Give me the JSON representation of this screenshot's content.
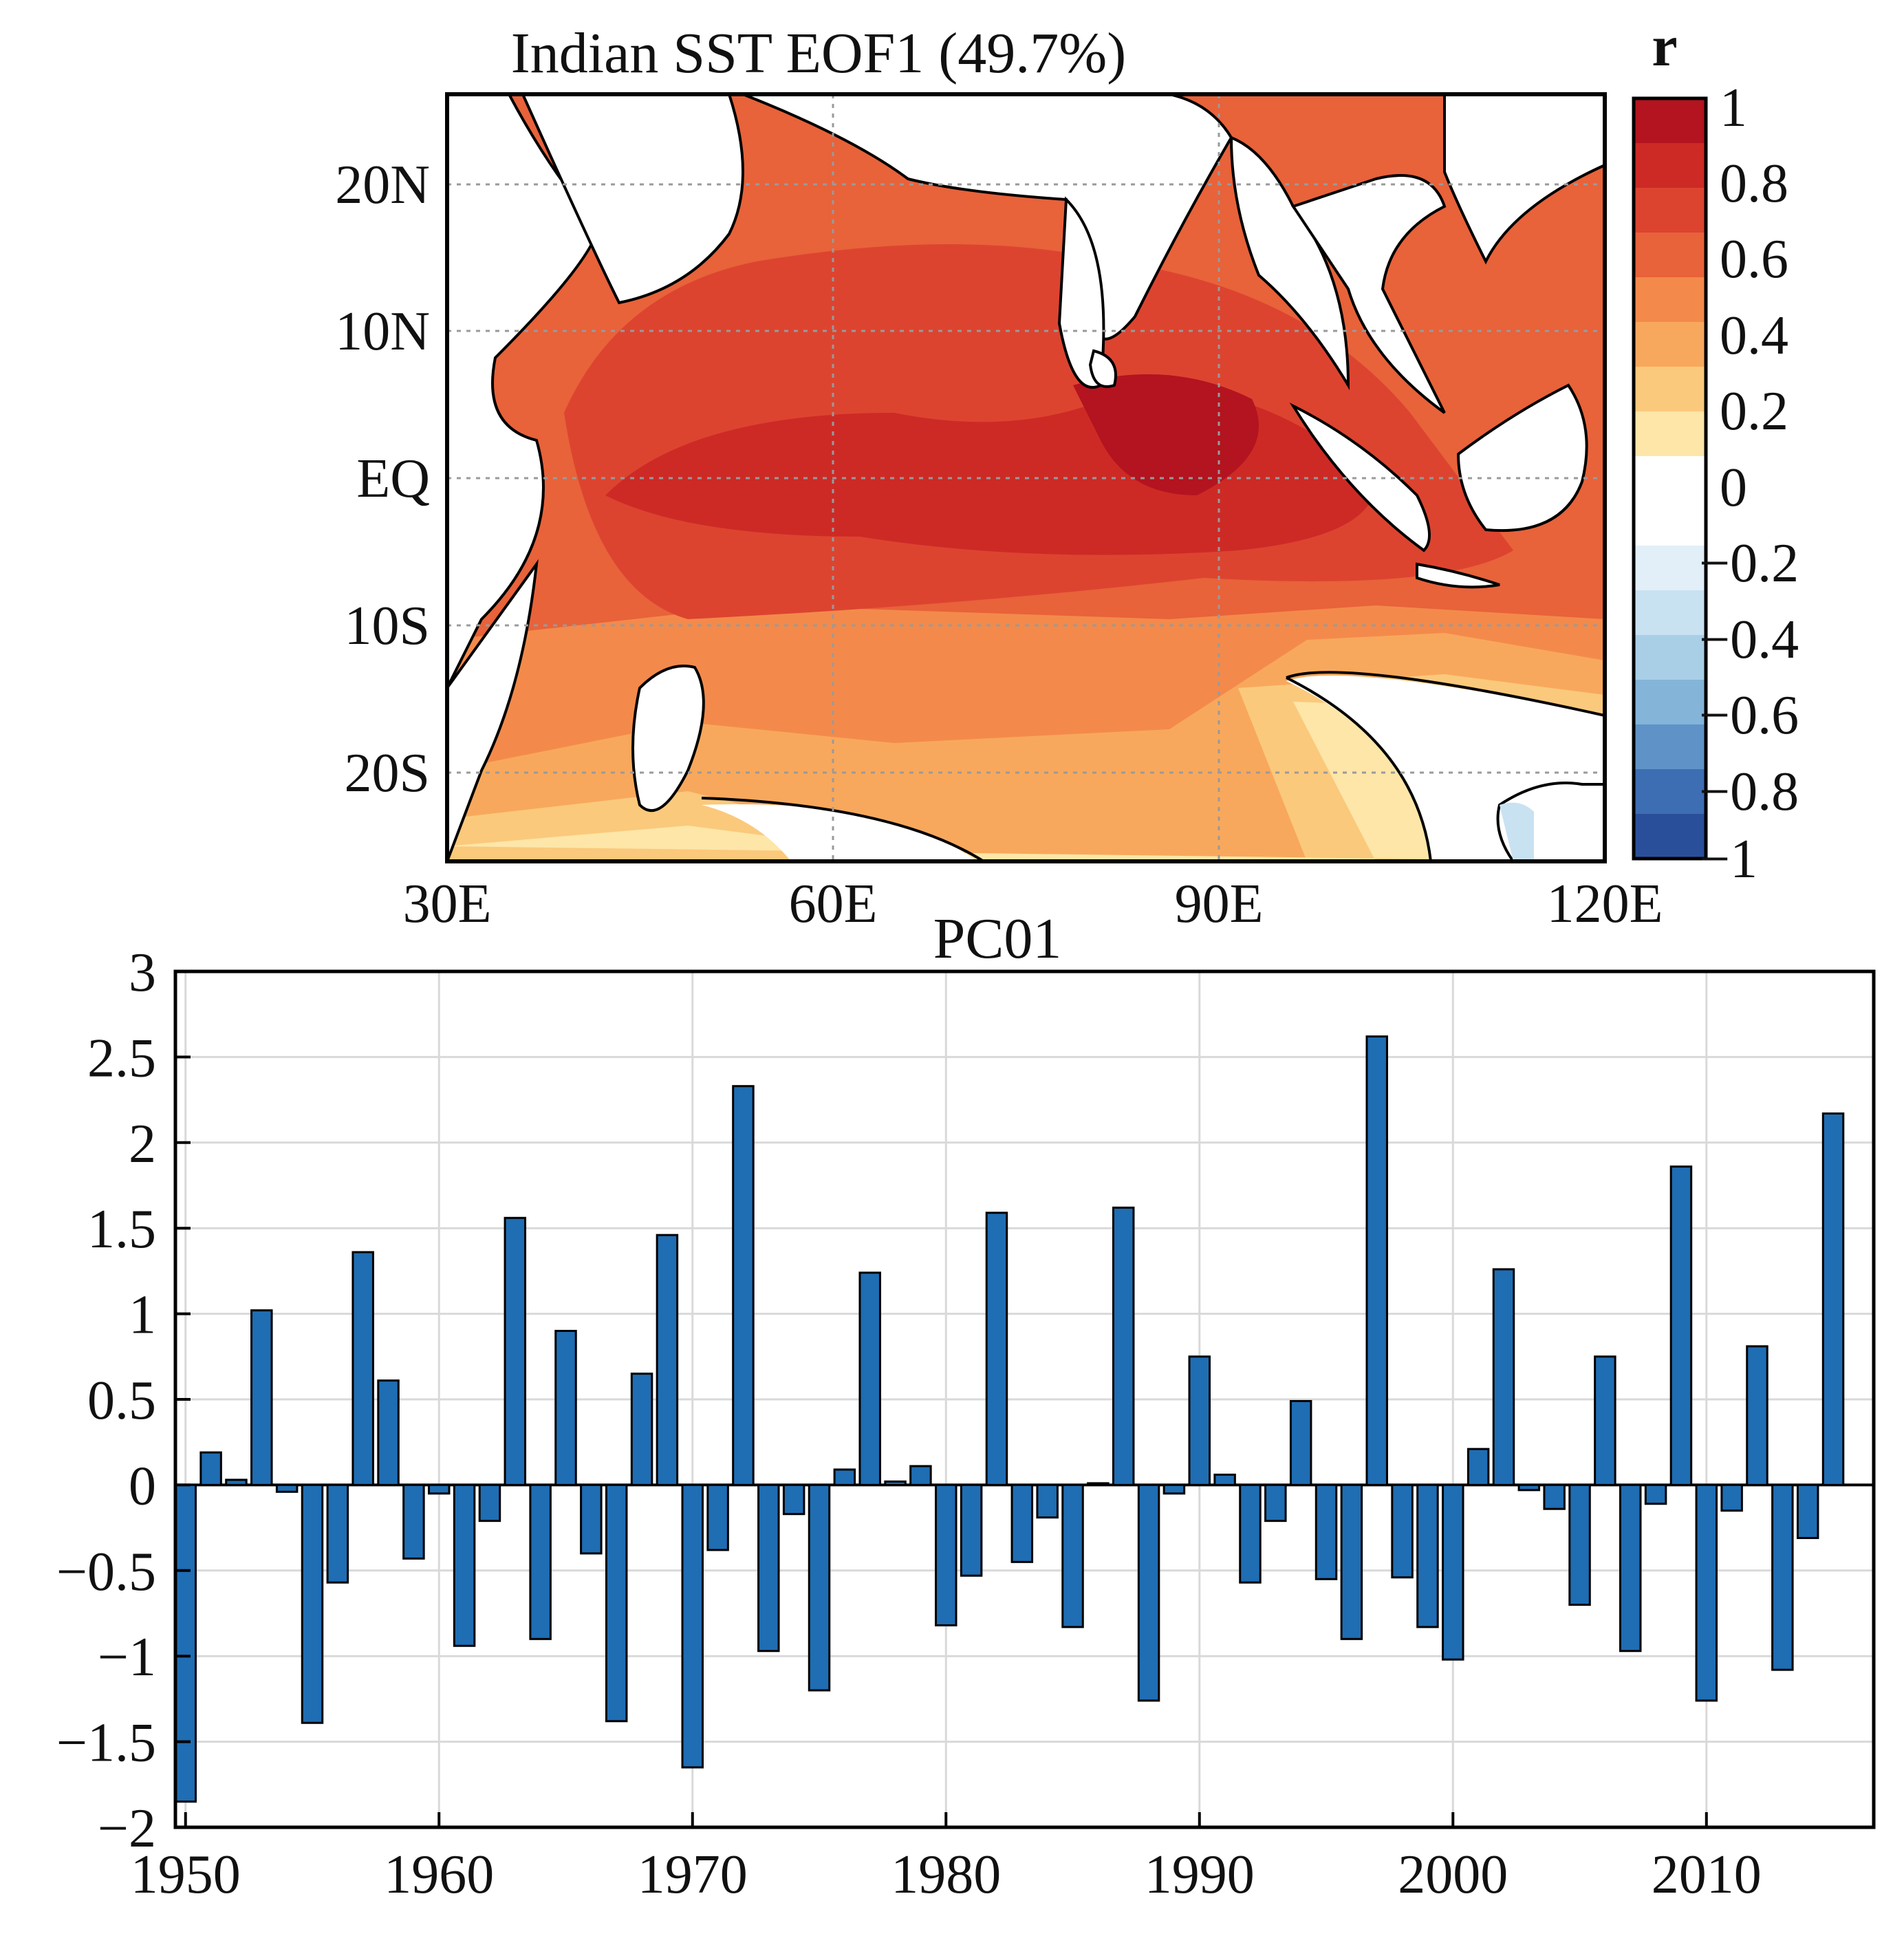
{
  "map": {
    "title": "Indian SST EOF1 (49.7%)",
    "lat_labels": [
      "20N",
      "10N",
      "EQ",
      "10S",
      "20S"
    ],
    "lon_labels": [
      "30E",
      "60E",
      "90E",
      "120E"
    ],
    "colorbar_label": "r",
    "colorbar_ticks": [
      "1",
      "0.8",
      "0.6",
      "0.4",
      "0.2",
      "0",
      "−0.2",
      "−0.4",
      "−0.6",
      "−0.8",
      "−1"
    ],
    "colorbar_colors": [
      "#b3141f",
      "#cd2a26",
      "#dc4430",
      "#e8623a",
      "#f38a4b",
      "#f8a85c",
      "#fbc97c",
      "#fde6a8",
      "#ffffff",
      "#ffffff",
      "#e2eff8",
      "#c9e2f2",
      "#a8cfe6",
      "#84b5d9",
      "#5f93c7",
      "#3d6eb3",
      "#2a4f9a"
    ]
  },
  "chart_data": {
    "type": "bar",
    "title": "PC01",
    "xlabel": "",
    "ylabel": "",
    "x_tick_labels": [
      "1950",
      "1960",
      "1970",
      "1980",
      "1990",
      "2000",
      "2010"
    ],
    "y_tick_labels": [
      "3",
      "2.5",
      "2",
      "1.5",
      "1",
      "0.5",
      "0",
      "−0.5",
      "−1",
      "−1.5",
      "−2"
    ],
    "ylim": [
      -2,
      3
    ],
    "xlim": [
      1949.6,
      2016.6
    ],
    "grid": true,
    "bar_color": "#1f6db3",
    "years": [
      1950,
      1951,
      1952,
      1953,
      1954,
      1955,
      1956,
      1957,
      1958,
      1959,
      1960,
      1961,
      1962,
      1963,
      1964,
      1965,
      1966,
      1967,
      1968,
      1969,
      1970,
      1971,
      1972,
      1973,
      1974,
      1975,
      1976,
      1977,
      1978,
      1979,
      1980,
      1981,
      1982,
      1983,
      1984,
      1985,
      1986,
      1987,
      1988,
      1989,
      1990,
      1991,
      1992,
      1993,
      1994,
      1995,
      1996,
      1997,
      1998,
      1999,
      2000,
      2001,
      2002,
      2003,
      2004,
      2005,
      2006,
      2007,
      2008,
      2009,
      2010,
      2011,
      2012,
      2013,
      2014,
      2015
    ],
    "values": [
      -1.85,
      0.19,
      0.03,
      1.02,
      -0.04,
      -1.39,
      -0.57,
      1.36,
      0.61,
      -0.43,
      -0.05,
      -0.94,
      -0.21,
      1.56,
      -0.9,
      0.9,
      -0.4,
      -1.38,
      0.65,
      1.46,
      -1.65,
      -0.38,
      2.33,
      -0.97,
      -0.17,
      -1.2,
      0.09,
      1.24,
      0.02,
      0.11,
      -0.82,
      -0.53,
      1.59,
      -0.45,
      -0.19,
      -0.83,
      0.01,
      1.62,
      -1.26,
      -0.05,
      0.75,
      0.06,
      -0.57,
      -0.21,
      0.49,
      -0.55,
      -0.9,
      2.62,
      -0.54,
      -0.83,
      -1.02,
      0.21,
      1.26,
      -0.03,
      -0.14,
      -0.7,
      0.75,
      -0.97,
      -0.11,
      1.86,
      -1.26,
      -0.15,
      0.81,
      -1.08,
      -0.31,
      2.17
    ]
  }
}
